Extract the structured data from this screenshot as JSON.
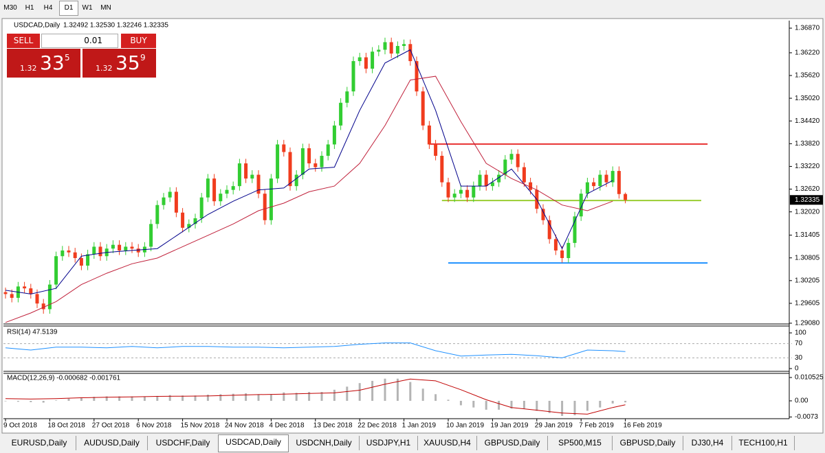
{
  "toolbar": {
    "timeframes": [
      "M30",
      "H1",
      "H4",
      "D1",
      "W1",
      "MN"
    ]
  },
  "trade_panel": {
    "sell": "SELL",
    "lot": "0.01",
    "buy": "BUY",
    "bid": {
      "big": "1.32",
      "pips": "33",
      "point": "5"
    },
    "ask": {
      "big": "1.32",
      "pips": "35",
      "point": "9"
    }
  },
  "tabs": [
    "EURUSD,Daily",
    "AUDUSD,Daily",
    "USDCHF,Daily",
    "USDCAD,Daily",
    "USDCNH,Daily",
    "USDJPY,H1",
    "XAUUSD,H4",
    "GBPUSD,Daily",
    "SP500,M15",
    "GBPUSD,Daily",
    "DJ30,H4",
    "TECH100,H1"
  ],
  "chart_data": {
    "type": "candlestick",
    "symbol": "USDCAD,Daily",
    "quote": "1.32492 1.32530 1.32246 1.32335",
    "up_color": "#32cd32",
    "down_color": "#f03c1e",
    "ylim": [
      1.2906,
      1.3707
    ],
    "yticks": [
      {
        "value": 1.3687,
        "label": "1.36870"
      },
      {
        "value": 1.3622,
        "label": "1.36220"
      },
      {
        "value": 1.3562,
        "label": "1.35620"
      },
      {
        "value": 1.3502,
        "label": "1.35020"
      },
      {
        "value": 1.3442,
        "label": "1.34420"
      },
      {
        "value": 1.3382,
        "label": "1.33820"
      },
      {
        "value": 1.3322,
        "label": "1.33220"
      },
      {
        "value": 1.3262,
        "label": "1.32620"
      },
      {
        "value": 1.3202,
        "label": "1.32020"
      },
      {
        "value": 1.31405,
        "label": "1.31405"
      },
      {
        "value": 1.30805,
        "label": "1.30805"
      },
      {
        "value": 1.30205,
        "label": "1.30205"
      },
      {
        "value": 1.29605,
        "label": "1.29605"
      },
      {
        "value": 1.2908,
        "label": "1.29080"
      }
    ],
    "xticks": [
      {
        "value": 0,
        "label": "9 Oct 2018"
      },
      {
        "value": 7,
        "label": "18 Oct 2018"
      },
      {
        "value": 14,
        "label": "27 Oct 2018"
      },
      {
        "value": 21,
        "label": "6 Nov 2018"
      },
      {
        "value": 28,
        "label": "15 Nov 2018"
      },
      {
        "value": 35,
        "label": "24 Nov 2018"
      },
      {
        "value": 42,
        "label": "4 Dec 2018"
      },
      {
        "value": 49,
        "label": "13 Dec 2018"
      },
      {
        "value": 56,
        "label": "22 Dec 2018"
      },
      {
        "value": 63,
        "label": "1 Jan 2019"
      },
      {
        "value": 70,
        "label": "10 Jan 2019"
      },
      {
        "value": 77,
        "label": "19 Jan 2019"
      },
      {
        "value": 84,
        "label": "29 Jan 2019"
      },
      {
        "value": 91,
        "label": "7 Feb 2019"
      },
      {
        "value": 98,
        "label": "16 Feb 2019"
      }
    ],
    "candles": [
      [
        1.299,
        1.3002,
        1.2973,
        1.2985
      ],
      [
        1.2985,
        1.2997,
        1.2963,
        1.2975
      ],
      [
        1.2975,
        1.3017,
        1.2963,
        1.3005
      ],
      [
        1.3005,
        1.3017,
        1.2988,
        1.3
      ],
      [
        1.3,
        1.3012,
        1.2973,
        1.2985
      ],
      [
        1.2985,
        1.2997,
        1.2948,
        1.296
      ],
      [
        1.296,
        1.2972,
        1.2933,
        1.2945
      ],
      [
        1.2945,
        1.3022,
        1.2933,
        1.301
      ],
      [
        1.301,
        1.3097,
        1.2998,
        1.3085
      ],
      [
        1.3085,
        1.3112,
        1.3073,
        1.31
      ],
      [
        1.31,
        1.3112,
        1.3083,
        1.3095
      ],
      [
        1.3095,
        1.3107,
        1.3068,
        1.308
      ],
      [
        1.308,
        1.3092,
        1.3048,
        1.306
      ],
      [
        1.306,
        1.3102,
        1.3048,
        1.309
      ],
      [
        1.309,
        1.3122,
        1.3078,
        1.311
      ],
      [
        1.311,
        1.3122,
        1.3073,
        1.3085
      ],
      [
        1.3085,
        1.3117,
        1.3073,
        1.3105
      ],
      [
        1.3105,
        1.3127,
        1.3093,
        1.3115
      ],
      [
        1.3115,
        1.3127,
        1.3088,
        1.31
      ],
      [
        1.31,
        1.3122,
        1.3088,
        1.311
      ],
      [
        1.311,
        1.3122,
        1.3093,
        1.3105
      ],
      [
        1.3105,
        1.3117,
        1.3083,
        1.3095
      ],
      [
        1.3095,
        1.3122,
        1.3083,
        1.311
      ],
      [
        1.311,
        1.3182,
        1.3098,
        1.317
      ],
      [
        1.317,
        1.3232,
        1.3158,
        1.322
      ],
      [
        1.322,
        1.3252,
        1.3208,
        1.324
      ],
      [
        1.324,
        1.3267,
        1.3228,
        1.3255
      ],
      [
        1.3255,
        1.3267,
        1.3188,
        1.32
      ],
      [
        1.32,
        1.3212,
        1.3148,
        1.316
      ],
      [
        1.316,
        1.3182,
        1.3148,
        1.317
      ],
      [
        1.317,
        1.3197,
        1.3158,
        1.3185
      ],
      [
        1.3185,
        1.3252,
        1.3173,
        1.324
      ],
      [
        1.324,
        1.3302,
        1.3228,
        1.329
      ],
      [
        1.329,
        1.3302,
        1.3218,
        1.323
      ],
      [
        1.323,
        1.3262,
        1.3218,
        1.325
      ],
      [
        1.325,
        1.3272,
        1.3238,
        1.326
      ],
      [
        1.326,
        1.3282,
        1.3248,
        1.327
      ],
      [
        1.327,
        1.3342,
        1.3258,
        1.333
      ],
      [
        1.333,
        1.3342,
        1.3278,
        1.329
      ],
      [
        1.329,
        1.3312,
        1.3278,
        1.33
      ],
      [
        1.33,
        1.3312,
        1.3238,
        1.325
      ],
      [
        1.325,
        1.3262,
        1.3168,
        1.318
      ],
      [
        1.318,
        1.3302,
        1.3168,
        1.329
      ],
      [
        1.329,
        1.3392,
        1.3278,
        1.338
      ],
      [
        1.338,
        1.3392,
        1.3348,
        1.336
      ],
      [
        1.336,
        1.3372,
        1.3258,
        1.327
      ],
      [
        1.327,
        1.3312,
        1.3258,
        1.33
      ],
      [
        1.33,
        1.3382,
        1.3288,
        1.337
      ],
      [
        1.337,
        1.3382,
        1.3318,
        1.333
      ],
      [
        1.333,
        1.3342,
        1.3308,
        1.332
      ],
      [
        1.332,
        1.3362,
        1.3308,
        1.335
      ],
      [
        1.335,
        1.3392,
        1.3338,
        1.338
      ],
      [
        1.338,
        1.3442,
        1.3368,
        1.343
      ],
      [
        1.343,
        1.3502,
        1.3418,
        1.349
      ],
      [
        1.349,
        1.3532,
        1.3478,
        1.352
      ],
      [
        1.352,
        1.3612,
        1.3508,
        1.36
      ],
      [
        1.36,
        1.3622,
        1.3588,
        1.361
      ],
      [
        1.361,
        1.3622,
        1.3568,
        1.358
      ],
      [
        1.358,
        1.3637,
        1.3568,
        1.3625
      ],
      [
        1.3625,
        1.3642,
        1.3613,
        1.363
      ],
      [
        1.363,
        1.3662,
        1.3618,
        1.365
      ],
      [
        1.365,
        1.3662,
        1.3608,
        1.362
      ],
      [
        1.362,
        1.3652,
        1.3608,
        1.364
      ],
      [
        1.364,
        1.3657,
        1.3628,
        1.3645
      ],
      [
        1.3645,
        1.3657,
        1.3588,
        1.36
      ],
      [
        1.36,
        1.3612,
        1.3508,
        1.352
      ],
      [
        1.352,
        1.3532,
        1.3418,
        1.343
      ],
      [
        1.343,
        1.3442,
        1.3368,
        1.338
      ],
      [
        1.338,
        1.3392,
        1.3338,
        1.335
      ],
      [
        1.335,
        1.3362,
        1.3268,
        1.328
      ],
      [
        1.328,
        1.3292,
        1.3228,
        1.324
      ],
      [
        1.324,
        1.3262,
        1.3228,
        1.325
      ],
      [
        1.325,
        1.3272,
        1.3238,
        1.326
      ],
      [
        1.326,
        1.3272,
        1.3228,
        1.324
      ],
      [
        1.324,
        1.3282,
        1.3228,
        1.327
      ],
      [
        1.327,
        1.3312,
        1.3258,
        1.33
      ],
      [
        1.33,
        1.3312,
        1.3258,
        1.327
      ],
      [
        1.327,
        1.3292,
        1.3258,
        1.328
      ],
      [
        1.328,
        1.3312,
        1.3268,
        1.33
      ],
      [
        1.33,
        1.3352,
        1.3288,
        1.334
      ],
      [
        1.334,
        1.3367,
        1.3328,
        1.3355
      ],
      [
        1.3355,
        1.3367,
        1.3308,
        1.332
      ],
      [
        1.332,
        1.3332,
        1.3268,
        1.328
      ],
      [
        1.328,
        1.3292,
        1.3248,
        1.326
      ],
      [
        1.326,
        1.3272,
        1.3198,
        1.321
      ],
      [
        1.321,
        1.3222,
        1.3168,
        1.318
      ],
      [
        1.318,
        1.3192,
        1.3118,
        1.313
      ],
      [
        1.313,
        1.3142,
        1.3088,
        1.31
      ],
      [
        1.31,
        1.3112,
        1.3068,
        1.308
      ],
      [
        1.308,
        1.3132,
        1.3068,
        1.312
      ],
      [
        1.312,
        1.3202,
        1.3108,
        1.319
      ],
      [
        1.319,
        1.3262,
        1.3178,
        1.325
      ],
      [
        1.325,
        1.3292,
        1.3238,
        1.328
      ],
      [
        1.328,
        1.3292,
        1.3258,
        1.327
      ],
      [
        1.327,
        1.3312,
        1.3258,
        1.33
      ],
      [
        1.33,
        1.3312,
        1.3268,
        1.328
      ],
      [
        1.328,
        1.3322,
        1.3268,
        1.331
      ],
      [
        1.331,
        1.3322,
        1.3237,
        1.3249
      ],
      [
        1.32492,
        1.3253,
        1.32246,
        1.32335
      ]
    ],
    "moving_averages": [
      {
        "color": "#00008b",
        "x": [
          0,
          4,
          8,
          12,
          16,
          20,
          24,
          28,
          32,
          36,
          40,
          44,
          48,
          52,
          56,
          60,
          64,
          68,
          72,
          76,
          80,
          84,
          88,
          92,
          96
        ],
        "values": [
          1.2995,
          1.2985,
          1.3,
          1.3085,
          1.3095,
          1.31,
          1.3105,
          1.315,
          1.3195,
          1.323,
          1.326,
          1.3265,
          1.3315,
          1.332,
          1.347,
          1.3595,
          1.363,
          1.347,
          1.327,
          1.327,
          1.3315,
          1.3235,
          1.3105,
          1.325,
          1.3285
        ]
      },
      {
        "color": "#c0203a",
        "x": [
          0,
          4,
          8,
          12,
          16,
          20,
          24,
          28,
          32,
          36,
          40,
          44,
          48,
          52,
          56,
          60,
          64,
          68,
          72,
          76,
          80,
          84,
          88,
          92,
          96
        ],
        "values": [
          1.291,
          1.2935,
          1.2965,
          1.301,
          1.304,
          1.3065,
          1.308,
          1.311,
          1.314,
          1.317,
          1.3205,
          1.3225,
          1.3255,
          1.327,
          1.333,
          1.343,
          1.355,
          1.356,
          1.344,
          1.333,
          1.329,
          1.326,
          1.322,
          1.3205,
          1.323
        ]
      }
    ],
    "levels": [
      {
        "value": 1.3381,
        "from": 67,
        "to": 111,
        "color": "#e83030"
      },
      {
        "value": 1.3232,
        "from": 69,
        "to": 110,
        "color": "#9acd32"
      },
      {
        "value": 1.3067,
        "from": 70,
        "to": 111,
        "color": "#1e90ff"
      }
    ],
    "rsi": {
      "title": "RSI(14) 47.5139",
      "color": "#1e90ff",
      "ylim": [
        0,
        100
      ],
      "yticks": [
        100,
        70,
        30,
        0
      ],
      "x": [
        0,
        4,
        8,
        12,
        16,
        20,
        24,
        28,
        32,
        36,
        40,
        44,
        48,
        52,
        56,
        60,
        64,
        68,
        72,
        76,
        80,
        84,
        88,
        92,
        96,
        98
      ],
      "values": [
        58,
        52,
        60,
        60,
        58,
        62,
        58,
        62,
        62,
        60,
        60,
        58,
        60,
        62,
        68,
        72,
        72,
        50,
        35,
        38,
        40,
        36,
        30,
        52,
        50,
        47.5139
      ]
    },
    "macd": {
      "title": "MACD(12,26,9) -0.000682 -0.001761",
      "hist_color": "#b4b4b4",
      "signal_color": "#c00000",
      "ylim": [
        -0.00805,
        0.01207
      ],
      "yticks": [
        0.010525,
        {
          "value": 0,
          "label": "0.00"
        },
        -0.0073
      ],
      "hist_x": [
        0,
        2,
        4,
        6,
        8,
        10,
        12,
        14,
        16,
        18,
        20,
        22,
        24,
        26,
        28,
        30,
        32,
        34,
        36,
        38,
        40,
        42,
        44,
        46,
        48,
        50,
        52,
        54,
        56,
        58,
        60,
        62,
        64,
        66,
        68,
        70,
        72,
        74,
        76,
        78,
        80,
        82,
        84,
        86,
        88,
        90,
        92,
        94,
        96,
        98
      ],
      "hist": [
        -0.0002,
        -0.0004,
        -0.0006,
        -0.0008,
        0.0002,
        0.001,
        0.0014,
        0.0018,
        0.002,
        0.002,
        0.002,
        0.0019,
        0.0022,
        0.0026,
        0.0024,
        0.0024,
        0.0028,
        0.003,
        0.0032,
        0.0034,
        0.003,
        0.003,
        0.0038,
        0.0036,
        0.004,
        0.004,
        0.005,
        0.0064,
        0.008,
        0.009,
        0.01,
        0.01,
        0.0085,
        0.0055,
        0.003,
        0.0005,
        -0.002,
        -0.003,
        -0.004,
        -0.004,
        -0.0035,
        -0.0035,
        -0.0045,
        -0.0055,
        -0.0068,
        -0.0065,
        -0.0045,
        -0.003,
        -0.0012,
        -0.000682
      ],
      "signal_x": [
        0,
        4,
        8,
        12,
        16,
        20,
        24,
        28,
        32,
        36,
        40,
        44,
        48,
        52,
        56,
        60,
        64,
        68,
        72,
        76,
        80,
        84,
        88,
        92,
        96,
        98
      ],
      "signal": [
        0.001,
        0.0008,
        0.001,
        0.0014,
        0.0016,
        0.0018,
        0.002,
        0.0021,
        0.0022,
        0.0025,
        0.0028,
        0.003,
        0.0033,
        0.0036,
        0.0048,
        0.0075,
        0.0098,
        0.009,
        0.005,
        0.0005,
        -0.003,
        -0.0042,
        -0.0055,
        -0.006,
        -0.003,
        -0.001761
      ]
    }
  }
}
